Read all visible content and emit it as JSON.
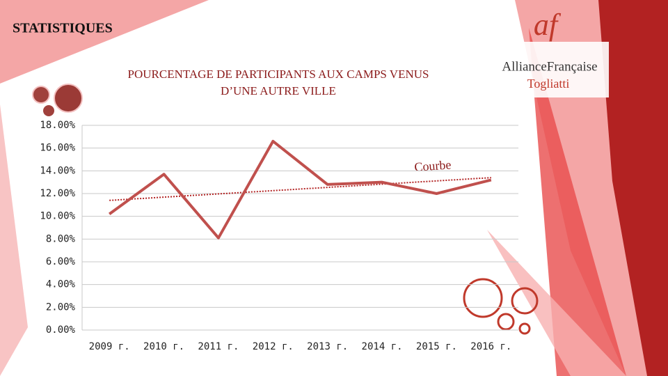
{
  "slide": {
    "title": "STATISTIQUES",
    "logo": {
      "mark": "af",
      "name": "AllianceFrançaise",
      "city": "Togliatti"
    }
  },
  "chart_data": {
    "type": "line",
    "title": "POURCENTAGE DE PARTICIPANTS AUX CAMPS VENUS D’UNE AUTRE VILLE",
    "annotation": "Courbe",
    "categories": [
      "2009 г.",
      "2010 г.",
      "2011 г.",
      "2012 г.",
      "2013 г.",
      "2014 г.",
      "2015 г.",
      "2016 г."
    ],
    "series": [
      {
        "color": "#c0504d",
        "values": [
          10.2,
          13.7,
          8.1,
          16.6,
          12.8,
          13.0,
          12.0,
          13.2
        ]
      }
    ],
    "trendline": {
      "color": "#b22222",
      "start": 11.4,
      "end": 13.4
    },
    "ylim": [
      0,
      18
    ],
    "yticks": [
      {
        "value": 0,
        "label": "0.00%"
      },
      {
        "value": 2,
        "label": "2.00%"
      },
      {
        "value": 4,
        "label": "4.00%"
      },
      {
        "value": 6,
        "label": "6.00%"
      },
      {
        "value": 8,
        "label": "8.00%"
      },
      {
        "value": 10,
        "label": "10.00%"
      },
      {
        "value": 12,
        "label": "12.00%"
      },
      {
        "value": 14,
        "label": "14.00%"
      },
      {
        "value": 16,
        "label": "16.00%"
      },
      {
        "value": 18,
        "label": "18.00%"
      }
    ],
    "grid": true
  }
}
